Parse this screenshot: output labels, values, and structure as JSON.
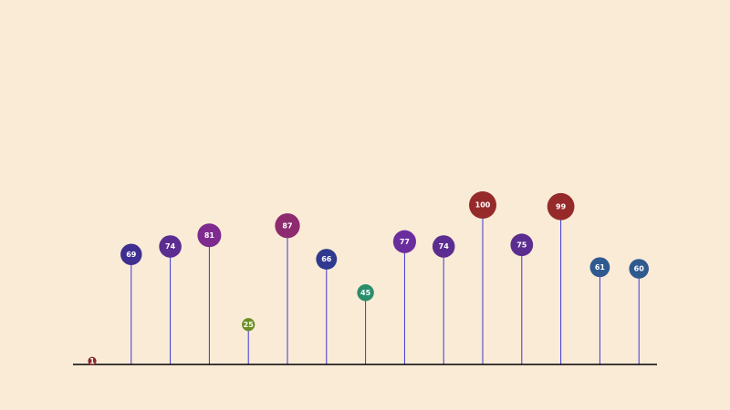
{
  "chart_data": {
    "type": "lollipop",
    "title": "",
    "xlabel": "",
    "ylabel": "",
    "ylim": [
      0,
      100
    ],
    "grid": false,
    "legend": "none",
    "values": [
      1,
      69,
      74,
      81,
      25,
      87,
      66,
      45,
      77,
      74,
      100,
      75,
      99,
      61,
      60
    ],
    "labels": [
      "1",
      "69",
      "74",
      "81",
      "25",
      "87",
      "66",
      "45",
      "77",
      "74",
      "100",
      "75",
      "99",
      "61",
      "60"
    ],
    "colors": [
      "#8b2a2a",
      "#3f2f90",
      "#5b2d90",
      "#7e2a8e",
      "#6a8e23",
      "#8e2a6e",
      "#2f3a8e",
      "#2a8e6a",
      "#6a2d9e",
      "#5b2d90",
      "#962a2a",
      "#5b2d90",
      "#962a2a",
      "#2f5a90",
      "#2f5a90"
    ]
  },
  "style": {
    "background": "#faebd7",
    "stem_color": "#3b37d6",
    "axis_color": "#000000",
    "label_color": "#ffffff"
  }
}
